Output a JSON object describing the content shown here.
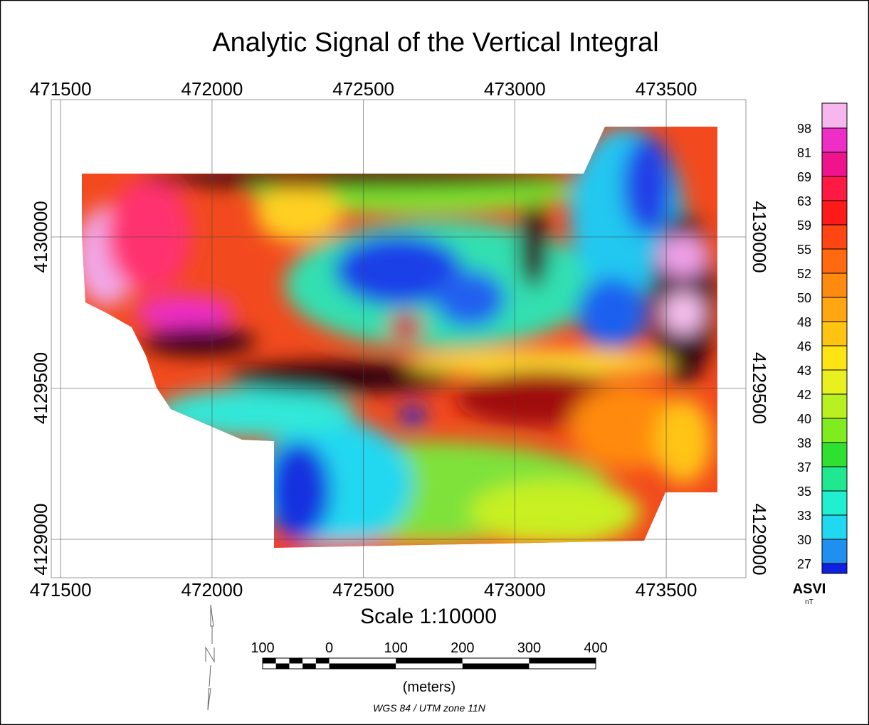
{
  "title": "Analytic Signal of the Vertical Integral",
  "map": {
    "xlim": [
      471469,
      473763
    ],
    "ylim": [
      4128873,
      4130454
    ],
    "xticks": [
      471500,
      472000,
      472500,
      473000,
      473500
    ],
    "yticks": [
      4129000,
      4129500,
      4130000
    ]
  },
  "legend": {
    "title": "ASVI",
    "unit": "nT",
    "labels": [
      98,
      81,
      69,
      63,
      59,
      55,
      52,
      50,
      48,
      46,
      43,
      42,
      40,
      38,
      37,
      35,
      33,
      30,
      27
    ],
    "colors": [
      "#f7b6ee",
      "#ee2ec6",
      "#f0148c",
      "#ff1a44",
      "#ff1a1a",
      "#ff4612",
      "#ff6a10",
      "#ff8a10",
      "#ffa612",
      "#ffc412",
      "#ffe414",
      "#e8f020",
      "#b8f020",
      "#80ec20",
      "#30e030",
      "#20e890",
      "#20f0d0",
      "#20d8f0",
      "#2090f0",
      "#1020e0"
    ]
  },
  "scale": {
    "text": "Scale 1:10000",
    "bar_labels": [
      100,
      0,
      100,
      200,
      300,
      400
    ],
    "unit": "(meters)"
  },
  "projection": "WGS 84 / UTM zone 11N"
}
